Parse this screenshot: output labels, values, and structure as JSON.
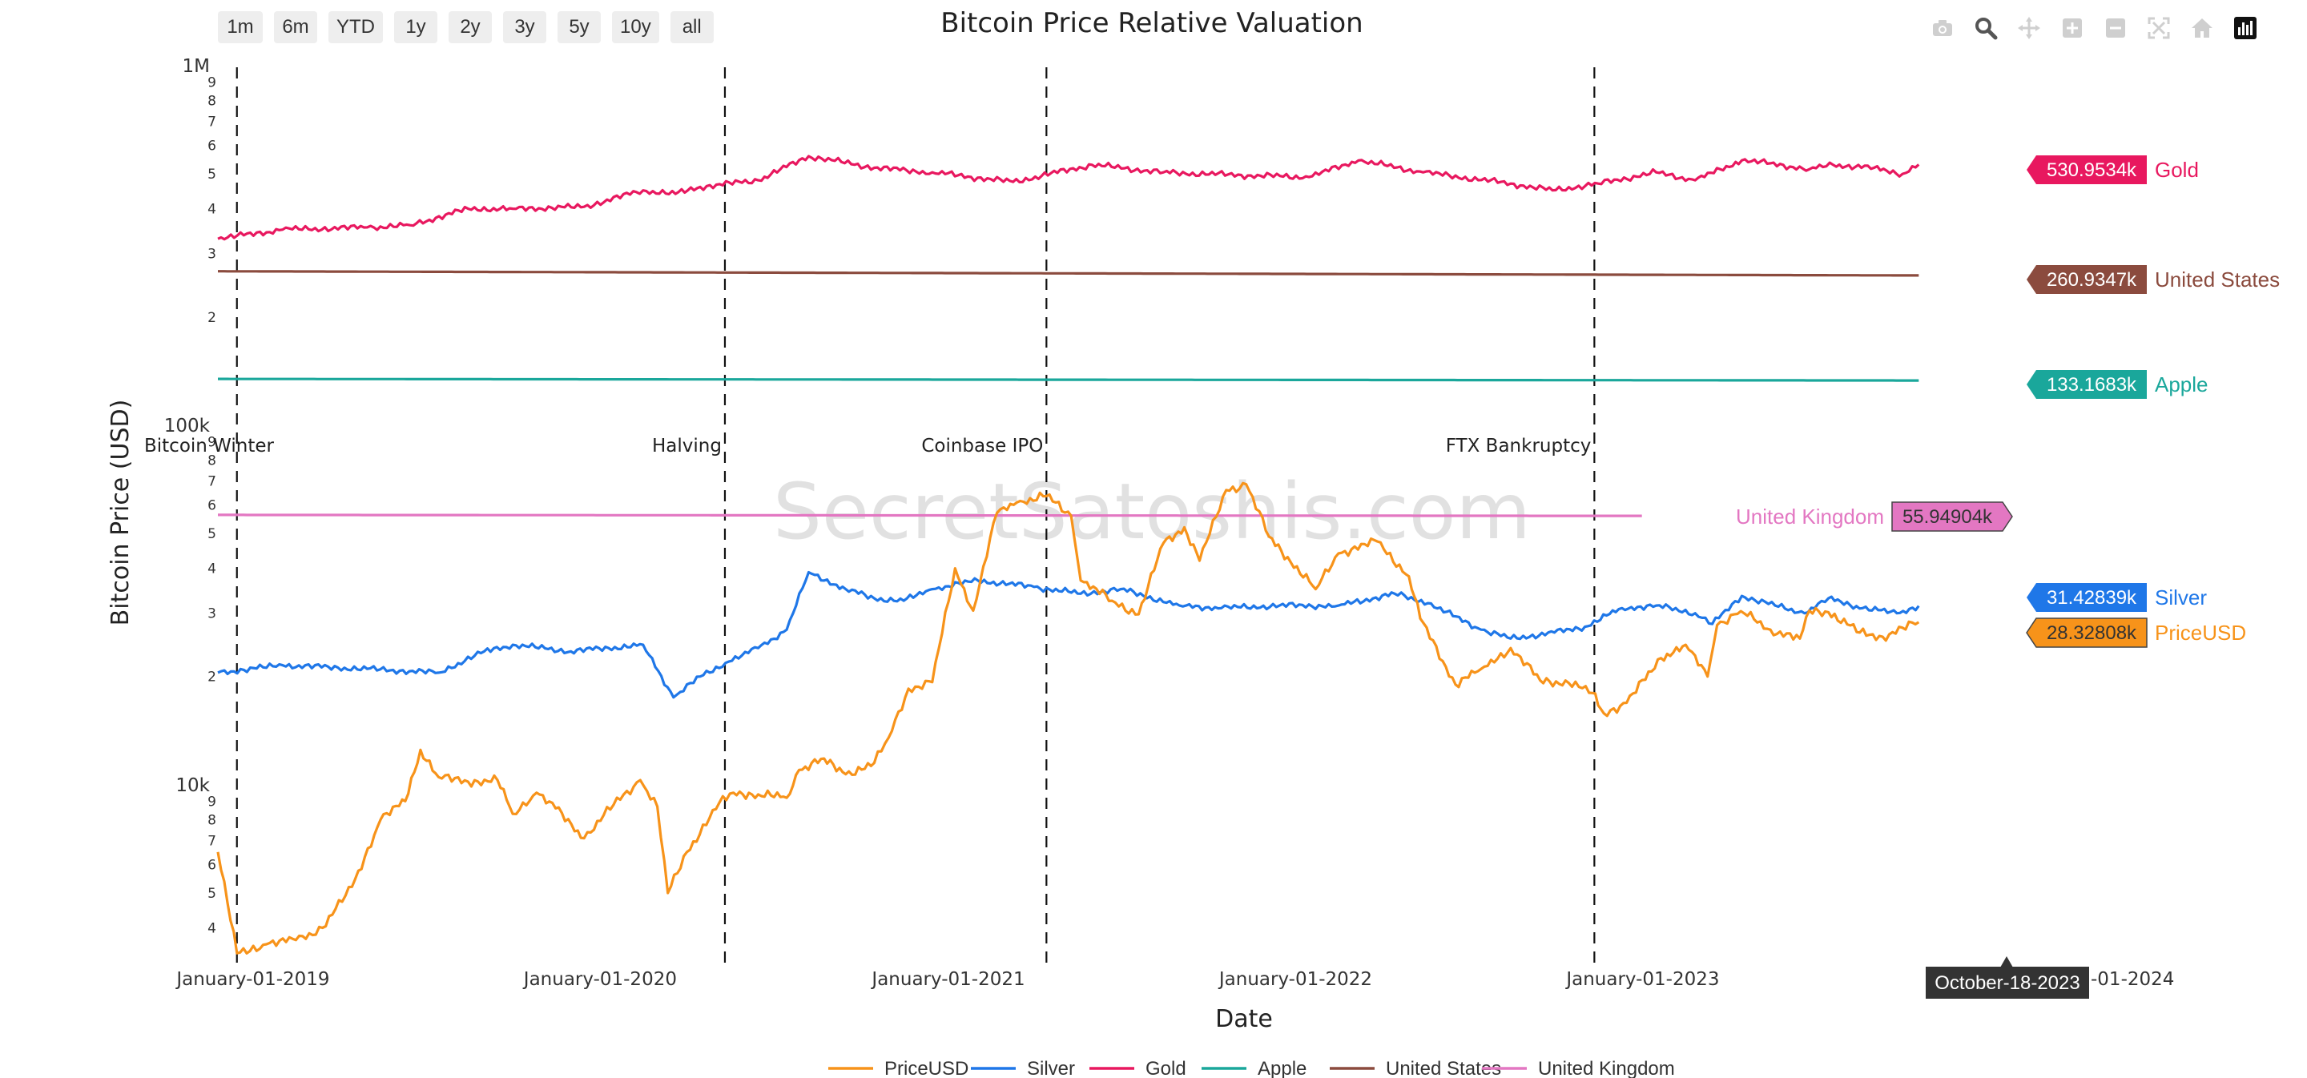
{
  "range_buttons": [
    "1m",
    "6m",
    "YTD",
    "1y",
    "2y",
    "3y",
    "5y",
    "10y",
    "all"
  ],
  "modebar": [
    {
      "icon": "camera-icon"
    },
    {
      "icon": "zoom-icon"
    },
    {
      "icon": "pan-icon"
    },
    {
      "icon": "zoom-in-icon"
    },
    {
      "icon": "zoom-out-icon"
    },
    {
      "icon": "autoscale-icon"
    },
    {
      "icon": "reset-axes-icon"
    },
    {
      "icon": "plotly-logo-icon"
    }
  ],
  "watermark": "SecretSatoshis.com",
  "hover_date": "October-18-2023",
  "chart_data": {
    "type": "line",
    "title": "Bitcoin Price Relative Valuation",
    "xlabel": "Date",
    "ylabel": "Bitcoin Price (USD)",
    "y_scale": "log",
    "xlim": [
      "2018-11-25",
      "2024-01-31"
    ],
    "ylim": [
      3300,
      1000000
    ],
    "x_tick_labels": [
      {
        "date": "2019-01-01",
        "label": "January-01-2019"
      },
      {
        "date": "2020-01-01",
        "label": "January-01-2020"
      },
      {
        "date": "2021-01-01",
        "label": "January-01-2021"
      },
      {
        "date": "2022-01-01",
        "label": "January-01-2022"
      },
      {
        "date": "2023-01-01",
        "label": "January-01-2023"
      },
      {
        "date": "2024-01-01",
        "label": "-01-2024"
      }
    ],
    "y_major_ticks": [
      {
        "value": 10000,
        "label": "10k"
      },
      {
        "value": 100000,
        "label": "100k"
      },
      {
        "value": 1000000,
        "label": "1M"
      }
    ],
    "y_minor_ticks": [
      {
        "value": 4000,
        "label": "4"
      },
      {
        "value": 5000,
        "label": "5"
      },
      {
        "value": 6000,
        "label": "6"
      },
      {
        "value": 7000,
        "label": "7"
      },
      {
        "value": 8000,
        "label": "8"
      },
      {
        "value": 9000,
        "label": "9"
      },
      {
        "value": 20000,
        "label": "2"
      },
      {
        "value": 30000,
        "label": "3"
      },
      {
        "value": 40000,
        "label": "4"
      },
      {
        "value": 50000,
        "label": "5"
      },
      {
        "value": 60000,
        "label": "6"
      },
      {
        "value": 70000,
        "label": "7"
      },
      {
        "value": 80000,
        "label": "8"
      },
      {
        "value": 90000,
        "label": "9"
      },
      {
        "value": 200000,
        "label": "2"
      },
      {
        "value": 300000,
        "label": "3"
      },
      {
        "value": 400000,
        "label": "4"
      },
      {
        "value": 500000,
        "label": "5"
      },
      {
        "value": 600000,
        "label": "6"
      },
      {
        "value": 700000,
        "label": "7"
      },
      {
        "value": 800000,
        "label": "8"
      },
      {
        "value": 900000,
        "label": "9"
      }
    ],
    "events": [
      {
        "date": "2018-12-15",
        "label": "Bitcoin Winter"
      },
      {
        "date": "2020-05-11",
        "label": "Halving"
      },
      {
        "date": "2021-04-14",
        "label": "Coinbase IPO"
      },
      {
        "date": "2022-11-11",
        "label": "FTX Bankruptcy"
      }
    ],
    "legend_position": "bottom",
    "series": [
      {
        "name": "PriceUSD",
        "color": "#f7931a",
        "end_label": "28.32808k",
        "end_value": 28328.08,
        "points": [
          [
            "2018-11-25",
            6500
          ],
          [
            "2018-12-15",
            3400
          ],
          [
            "2019-01-15",
            3600
          ],
          [
            "2019-02-15",
            3700
          ],
          [
            "2019-03-15",
            4000
          ],
          [
            "2019-04-15",
            5200
          ],
          [
            "2019-05-15",
            8000
          ],
          [
            "2019-06-10",
            9000
          ],
          [
            "2019-06-26",
            12500
          ],
          [
            "2019-07-15",
            10500
          ],
          [
            "2019-08-15",
            10200
          ],
          [
            "2019-09-15",
            10300
          ],
          [
            "2019-10-01",
            8300
          ],
          [
            "2019-10-26",
            9500
          ],
          [
            "2019-11-15",
            8600
          ],
          [
            "2019-12-15",
            7100
          ],
          [
            "2020-01-15",
            8800
          ],
          [
            "2020-02-12",
            10300
          ],
          [
            "2020-03-01",
            8700
          ],
          [
            "2020-03-12",
            5000
          ],
          [
            "2020-04-01",
            6500
          ],
          [
            "2020-05-05",
            8900
          ],
          [
            "2020-05-20",
            9500
          ],
          [
            "2020-06-15",
            9400
          ],
          [
            "2020-07-15",
            9200
          ],
          [
            "2020-07-28",
            11000
          ],
          [
            "2020-08-20",
            11800
          ],
          [
            "2020-09-15",
            10700
          ],
          [
            "2020-10-15",
            11500
          ],
          [
            "2020-10-30",
            13500
          ],
          [
            "2020-11-20",
            18500
          ],
          [
            "2020-12-15",
            19300
          ],
          [
            "2021-01-08",
            40000
          ],
          [
            "2021-01-27",
            30500
          ],
          [
            "2021-02-21",
            57000
          ],
          [
            "2021-03-14",
            61000
          ],
          [
            "2021-04-14",
            63500
          ],
          [
            "2021-05-10",
            56000
          ],
          [
            "2021-05-20",
            37000
          ],
          [
            "2021-06-22",
            32500
          ],
          [
            "2021-07-20",
            29800
          ],
          [
            "2021-08-15",
            47000
          ],
          [
            "2021-09-06",
            52000
          ],
          [
            "2021-09-22",
            42000
          ],
          [
            "2021-10-20",
            66000
          ],
          [
            "2021-11-10",
            68500
          ],
          [
            "2021-12-04",
            49000
          ],
          [
            "2022-01-22",
            35000
          ],
          [
            "2022-02-15",
            44000
          ],
          [
            "2022-03-28",
            47500
          ],
          [
            "2022-04-30",
            38000
          ],
          [
            "2022-05-12",
            29000
          ],
          [
            "2022-06-18",
            19000
          ],
          [
            "2022-07-15",
            21000
          ],
          [
            "2022-08-15",
            24000
          ],
          [
            "2022-09-15",
            19500
          ],
          [
            "2022-10-15",
            19200
          ],
          [
            "2022-11-09",
            18000
          ],
          [
            "2022-11-21",
            15800
          ],
          [
            "2022-12-15",
            16900
          ],
          [
            "2023-01-20",
            22500
          ],
          [
            "2023-02-15",
            24500
          ],
          [
            "2023-03-10",
            20000
          ],
          [
            "2023-03-20",
            27800
          ],
          [
            "2023-04-14",
            30400
          ],
          [
            "2023-05-15",
            27000
          ],
          [
            "2023-06-15",
            25500
          ],
          [
            "2023-06-25",
            30500
          ],
          [
            "2023-07-15",
            30200
          ],
          [
            "2023-08-17",
            26500
          ],
          [
            "2023-09-10",
            25800
          ],
          [
            "2023-10-18",
            28328.08
          ]
        ]
      },
      {
        "name": "Silver",
        "color": "#1f77e8",
        "end_label": "31.42839k",
        "end_value": 31428.39,
        "points": [
          [
            "2018-11-25",
            20500
          ],
          [
            "2019-02-01",
            21500
          ],
          [
            "2019-05-01",
            21000
          ],
          [
            "2019-07-15",
            20500
          ],
          [
            "2019-09-01",
            23500
          ],
          [
            "2019-10-01",
            24500
          ],
          [
            "2019-12-01",
            23500
          ],
          [
            "2020-02-15",
            24500
          ],
          [
            "2020-03-18",
            17500
          ],
          [
            "2020-04-15",
            20000
          ],
          [
            "2020-05-15",
            22000
          ],
          [
            "2020-06-15",
            24000
          ],
          [
            "2020-07-15",
            27000
          ],
          [
            "2020-08-07",
            39000
          ],
          [
            "2020-09-15",
            35000
          ],
          [
            "2020-10-15",
            33000
          ],
          [
            "2020-11-15",
            32500
          ],
          [
            "2020-12-15",
            35000
          ],
          [
            "2021-02-01",
            37000
          ],
          [
            "2021-04-01",
            35500
          ],
          [
            "2021-05-20",
            34000
          ],
          [
            "2021-07-01",
            35000
          ],
          [
            "2021-09-01",
            31500
          ],
          [
            "2021-10-15",
            31000
          ],
          [
            "2021-12-15",
            31500
          ],
          [
            "2022-02-15",
            31500
          ],
          [
            "2022-04-15",
            34000
          ],
          [
            "2022-05-20",
            32000
          ],
          [
            "2022-07-15",
            27000
          ],
          [
            "2022-08-15",
            25500
          ],
          [
            "2022-09-30",
            26500
          ],
          [
            "2022-11-01",
            27500
          ],
          [
            "2022-12-10",
            31000
          ],
          [
            "2023-01-15",
            31500
          ],
          [
            "2023-02-25",
            30000
          ],
          [
            "2023-03-15",
            28000
          ],
          [
            "2023-04-15",
            33500
          ],
          [
            "2023-05-20",
            31500
          ],
          [
            "2023-06-20",
            30000
          ],
          [
            "2023-07-15",
            33000
          ],
          [
            "2023-08-20",
            31000
          ],
          [
            "2023-09-25",
            30000
          ],
          [
            "2023-10-18",
            31428.39
          ]
        ]
      },
      {
        "name": "Gold",
        "color": "#e8185f",
        "end_label": "530.9534k",
        "end_value": 530953.4,
        "points": [
          [
            "2018-11-25",
            330000
          ],
          [
            "2019-02-01",
            350000
          ],
          [
            "2019-05-01",
            355000
          ],
          [
            "2019-06-15",
            360000
          ],
          [
            "2019-08-15",
            400000
          ],
          [
            "2019-10-01",
            400000
          ],
          [
            "2019-12-15",
            405000
          ],
          [
            "2020-02-15",
            450000
          ],
          [
            "2020-03-20",
            440000
          ],
          [
            "2020-04-15",
            460000
          ],
          [
            "2020-06-15",
            480000
          ],
          [
            "2020-08-07",
            560000
          ],
          [
            "2020-10-15",
            520000
          ],
          [
            "2020-12-15",
            505000
          ],
          [
            "2021-03-10",
            475000
          ],
          [
            "2021-06-01",
            530000
          ],
          [
            "2021-08-15",
            505000
          ],
          [
            "2021-11-15",
            495000
          ],
          [
            "2022-01-15",
            490000
          ],
          [
            "2022-03-08",
            545000
          ],
          [
            "2022-05-15",
            505000
          ],
          [
            "2022-08-15",
            470000
          ],
          [
            "2022-09-28",
            450000
          ],
          [
            "2022-11-15",
            470000
          ],
          [
            "2023-01-15",
            505000
          ],
          [
            "2023-02-25",
            480000
          ],
          [
            "2023-04-15",
            545000
          ],
          [
            "2023-05-15",
            535000
          ],
          [
            "2023-06-25",
            515000
          ],
          [
            "2023-07-20",
            530000
          ],
          [
            "2023-09-01",
            520000
          ],
          [
            "2023-10-01",
            500000
          ],
          [
            "2023-10-18",
            530953.4
          ]
        ]
      },
      {
        "name": "Apple",
        "color": "#1aa79b",
        "end_label": "133.1683k",
        "end_value": 133168.3,
        "points": [
          [
            "2018-11-25",
            134500
          ],
          [
            "2023-10-18",
            133168.3
          ]
        ]
      },
      {
        "name": "United States",
        "color": "#8b4b3e",
        "end_label": "260.9347k",
        "end_value": 260934.7,
        "points": [
          [
            "2018-11-25",
            268000
          ],
          [
            "2023-10-18",
            260934.7
          ]
        ]
      },
      {
        "name": "United Kingdom",
        "color": "#e377c2",
        "end_label": "55.94904k",
        "end_value": 55949.04,
        "points": [
          [
            "2018-11-25",
            56300
          ],
          [
            "2022-12-31",
            55949.04
          ]
        ]
      }
    ]
  }
}
